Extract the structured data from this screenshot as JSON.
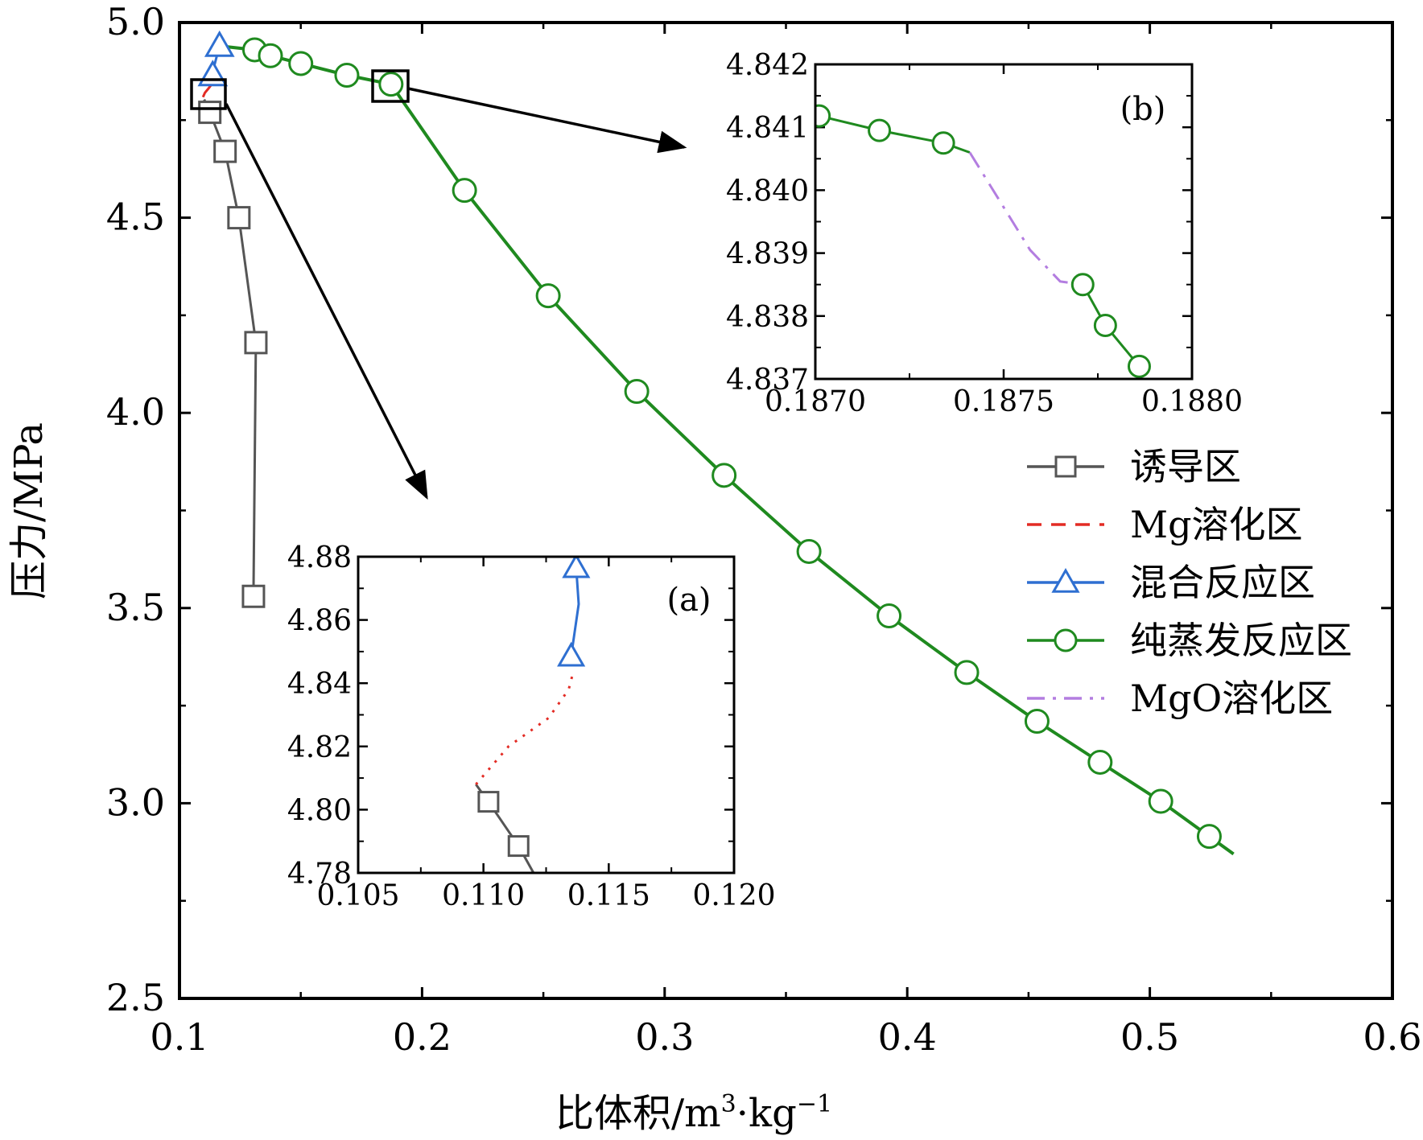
{
  "chart_data": {
    "type": "line",
    "xlabel": "比体积/m³·kg⁻¹",
    "ylabel": "压力/MPa",
    "xlim": [
      0.1,
      0.6
    ],
    "ylim": [
      2.5,
      5.0
    ],
    "xticks": [
      "0.1",
      "0.2",
      "0.3",
      "0.4",
      "0.5",
      "0.6"
    ],
    "yticks": [
      "2.5",
      "3.0",
      "3.5",
      "4.0",
      "4.5",
      "5.0"
    ],
    "legend": {
      "placement": "right",
      "entries": [
        "诱导区",
        "Mg溶化区",
        "混合反应区",
        "纯蒸发反应区",
        "MgO溶化区"
      ]
    },
    "series": [
      {
        "name": "诱导区",
        "color": "#555555",
        "marker": "square",
        "style": "solid",
        "x": [
          0.1102,
          0.1125,
          0.1188,
          0.1245,
          0.1315,
          0.1305
        ],
        "y": [
          4.803,
          4.77,
          4.67,
          4.5,
          4.18,
          3.53
        ]
      },
      {
        "name": "Mg溶化区",
        "color": "#e32b24",
        "marker": "none",
        "style": "dashed",
        "x": [
          0.1097,
          0.1105,
          0.1118,
          0.1128,
          0.1134
        ],
        "y": [
          4.809,
          4.82,
          4.83,
          4.838,
          4.844
        ]
      },
      {
        "name": "混合反应区",
        "color": "#2e6fd1",
        "marker": "triangle",
        "style": "solid",
        "x": [
          0.1134,
          0.1137,
          0.1138,
          0.1165
        ],
        "y": [
          4.848,
          4.865,
          4.877,
          4.94
        ]
      },
      {
        "name": "纯蒸发反应区",
        "color": "#1f8a1f",
        "marker": "circle",
        "style": "solid",
        "x": [
          0.1165,
          0.131,
          0.1375,
          0.15,
          0.169,
          0.1872,
          0.2175,
          0.252,
          0.2885,
          0.3245,
          0.3595,
          0.3925,
          0.4245,
          0.4535,
          0.4795,
          0.5045,
          0.5245,
          0.5345
        ],
        "y": [
          4.94,
          4.93,
          4.915,
          4.895,
          4.865,
          4.842,
          4.57,
          4.3,
          4.055,
          3.84,
          3.645,
          3.48,
          3.335,
          3.21,
          3.105,
          3.005,
          2.915,
          2.87
        ]
      },
      {
        "name": "MgO溶化区",
        "color": "#b37de0",
        "marker": "none",
        "style": "dashdot",
        "x": [
          0.18741,
          0.18765,
          0.1877
        ],
        "y": [
          4.8406,
          4.8389,
          4.8384
        ]
      }
    ],
    "insets": [
      {
        "label": "(a)",
        "xlim": [
          0.105,
          0.12
        ],
        "ylim": [
          4.78,
          4.88
        ],
        "xticks": [
          "0.105",
          "0.110",
          "0.115",
          "0.120"
        ],
        "yticks": [
          "4.78",
          "4.80",
          "4.82",
          "4.84",
          "4.86",
          "4.88"
        ],
        "series": [
          {
            "name": "诱导区",
            "x": [
              0.1097,
              0.1102,
              0.1114,
              0.112
            ],
            "y": [
              4.808,
              4.8025,
              4.7885,
              4.78
            ]
          },
          {
            "name": "Mg溶化区",
            "x": [
              0.1097,
              0.111,
              0.1126,
              0.1134,
              0.1136
            ],
            "y": [
              4.808,
              4.82,
              4.829,
              4.838,
              4.844
            ]
          },
          {
            "name": "混合反应区",
            "x": [
              0.1135,
              0.1138,
              0.1137
            ],
            "y": [
              4.8485,
              4.865,
              4.8765
            ]
          }
        ]
      },
      {
        "label": "(b)",
        "xlim": [
          0.187,
          0.188
        ],
        "ylim": [
          4.837,
          4.842
        ],
        "xticks": [
          "0.1870",
          "0.1875",
          "0.1880"
        ],
        "yticks": [
          "4.837",
          "4.838",
          "4.839",
          "4.840",
          "4.841",
          "4.842"
        ],
        "series": [
          {
            "name": "纯蒸发反应区",
            "x": [
              0.18701,
              0.18717,
              0.18734,
              0.18741
            ],
            "y": [
              4.84118,
              4.84095,
              4.84075,
              4.8406
            ]
          },
          {
            "name": "MgO溶化区",
            "x": [
              0.18741,
              0.18757,
              0.18765,
              0.18771
            ],
            "y": [
              4.8406,
              4.83905,
              4.83855,
              4.8385
            ]
          },
          {
            "name": "纯蒸发反应区",
            "x": [
              0.18771,
              0.18777,
              0.18786
            ],
            "y": [
              4.8385,
              4.83785,
              4.8372
            ]
          }
        ]
      }
    ]
  }
}
